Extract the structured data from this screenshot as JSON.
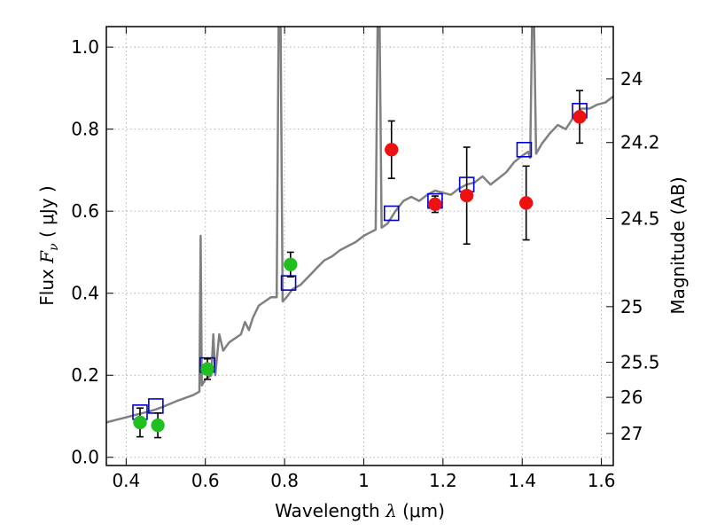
{
  "chart_data": {
    "type": "scatter",
    "xlabel": {
      "prefix": "Wavelength",
      "symbol": "λ",
      "unit": "(μm)"
    },
    "ylabel": {
      "prefix": "Flux",
      "symbol": "F",
      "sub": "ν",
      "unit": "( μJy )"
    },
    "ylabel_right": "Magnitude (AB)",
    "xlim": [
      0.35,
      1.63
    ],
    "ylim": [
      -0.02,
      1.05
    ],
    "grid": true,
    "x_ticks": [
      0.4,
      0.6,
      0.8,
      1.0,
      1.2,
      1.4,
      1.6
    ],
    "x_tick_labels": [
      "0.4",
      "0.6",
      "0.8",
      "1",
      "1.2",
      "1.4",
      "1.6"
    ],
    "y_ticks": [
      0.0,
      0.2,
      0.4,
      0.6,
      0.8,
      1.0
    ],
    "y_tick_labels": [
      "0.0",
      "0.2",
      "0.4",
      "0.6",
      "0.8",
      "1.0"
    ],
    "right_ticks": [
      {
        "label": "24",
        "flux": 0.9226
      },
      {
        "label": "24.2",
        "flux": 0.7674
      },
      {
        "label": "24.5",
        "flux": 0.5821
      },
      {
        "label": "25",
        "flux": 0.3673
      },
      {
        "label": "25.5",
        "flux": 0.2318
      },
      {
        "label": "26",
        "flux": 0.1462
      },
      {
        "label": "27",
        "flux": 0.0582
      }
    ],
    "colors": {
      "model": "#808080",
      "model_photometry": "#0000cc",
      "green": "#1fbf1f",
      "red": "#ee1111",
      "errorbar": "#000000",
      "grid": "#b0b0b0"
    },
    "series": [
      {
        "name": "model_spectrum",
        "style": "line",
        "points": [
          [
            0.35,
            0.085
          ],
          [
            0.37,
            0.09
          ],
          [
            0.39,
            0.095
          ],
          [
            0.41,
            0.1
          ],
          [
            0.43,
            0.105
          ],
          [
            0.45,
            0.11
          ],
          [
            0.47,
            0.115
          ],
          [
            0.49,
            0.122
          ],
          [
            0.51,
            0.13
          ],
          [
            0.53,
            0.138
          ],
          [
            0.55,
            0.145
          ],
          [
            0.57,
            0.152
          ],
          [
            0.585,
            0.16
          ],
          [
            0.588,
            0.54
          ],
          [
            0.591,
            0.175
          ],
          [
            0.6,
            0.19
          ],
          [
            0.615,
            0.2
          ],
          [
            0.62,
            0.3
          ],
          [
            0.625,
            0.2
          ],
          [
            0.635,
            0.3
          ],
          [
            0.645,
            0.26
          ],
          [
            0.66,
            0.28
          ],
          [
            0.675,
            0.29
          ],
          [
            0.69,
            0.3
          ],
          [
            0.7,
            0.33
          ],
          [
            0.71,
            0.31
          ],
          [
            0.72,
            0.34
          ],
          [
            0.735,
            0.37
          ],
          [
            0.75,
            0.38
          ],
          [
            0.765,
            0.39
          ],
          [
            0.78,
            0.39
          ],
          [
            0.785,
            1.06
          ],
          [
            0.79,
            1.06
          ],
          [
            0.795,
            0.38
          ],
          [
            0.805,
            0.39
          ],
          [
            0.82,
            0.41
          ],
          [
            0.84,
            0.42
          ],
          [
            0.86,
            0.44
          ],
          [
            0.88,
            0.46
          ],
          [
            0.9,
            0.48
          ],
          [
            0.92,
            0.49
          ],
          [
            0.94,
            0.505
          ],
          [
            0.96,
            0.515
          ],
          [
            0.98,
            0.525
          ],
          [
            1.0,
            0.54
          ],
          [
            1.02,
            0.55
          ],
          [
            1.03,
            0.555
          ],
          [
            1.035,
            1.06
          ],
          [
            1.04,
            1.06
          ],
          [
            1.045,
            0.56
          ],
          [
            1.06,
            0.57
          ],
          [
            1.08,
            0.6
          ],
          [
            1.1,
            0.625
          ],
          [
            1.12,
            0.635
          ],
          [
            1.14,
            0.625
          ],
          [
            1.16,
            0.64
          ],
          [
            1.18,
            0.65
          ],
          [
            1.2,
            0.645
          ],
          [
            1.22,
            0.64
          ],
          [
            1.24,
            0.655
          ],
          [
            1.26,
            0.665
          ],
          [
            1.28,
            0.67
          ],
          [
            1.3,
            0.685
          ],
          [
            1.32,
            0.665
          ],
          [
            1.34,
            0.68
          ],
          [
            1.36,
            0.695
          ],
          [
            1.38,
            0.72
          ],
          [
            1.4,
            0.735
          ],
          [
            1.415,
            0.745
          ],
          [
            1.42,
            0.73
          ],
          [
            1.425,
            1.06
          ],
          [
            1.43,
            1.06
          ],
          [
            1.435,
            0.74
          ],
          [
            1.45,
            0.765
          ],
          [
            1.47,
            0.79
          ],
          [
            1.49,
            0.81
          ],
          [
            1.51,
            0.8
          ],
          [
            1.53,
            0.83
          ],
          [
            1.55,
            0.85
          ],
          [
            1.57,
            0.85
          ],
          [
            1.59,
            0.86
          ],
          [
            1.61,
            0.865
          ],
          [
            1.63,
            0.88
          ]
        ]
      },
      {
        "name": "model_photometry",
        "style": "open-square",
        "points": [
          [
            0.435,
            0.11
          ],
          [
            0.475,
            0.125
          ],
          [
            0.605,
            0.225
          ],
          [
            0.81,
            0.425
          ],
          [
            1.07,
            0.595
          ],
          [
            1.18,
            0.625
          ],
          [
            1.26,
            0.665
          ],
          [
            1.405,
            0.75
          ],
          [
            1.545,
            0.845
          ]
        ]
      },
      {
        "name": "observed_green",
        "style": "filled-circle",
        "points": [
          {
            "x": 0.435,
            "y": 0.085,
            "err": 0.035
          },
          {
            "x": 0.48,
            "y": 0.078,
            "err": 0.03
          },
          {
            "x": 0.605,
            "y": 0.215,
            "err": 0.025
          },
          {
            "x": 0.815,
            "y": 0.47,
            "err": 0.03
          }
        ]
      },
      {
        "name": "observed_red",
        "style": "filled-circle",
        "points": [
          {
            "x": 1.07,
            "y": 0.75,
            "err": 0.07
          },
          {
            "x": 1.18,
            "y": 0.617,
            "err": 0.02
          },
          {
            "x": 1.26,
            "y": 0.638,
            "err": 0.118
          },
          {
            "x": 1.41,
            "y": 0.62,
            "err": 0.09
          },
          {
            "x": 1.545,
            "y": 0.83,
            "err": 0.064
          }
        ]
      }
    ]
  }
}
